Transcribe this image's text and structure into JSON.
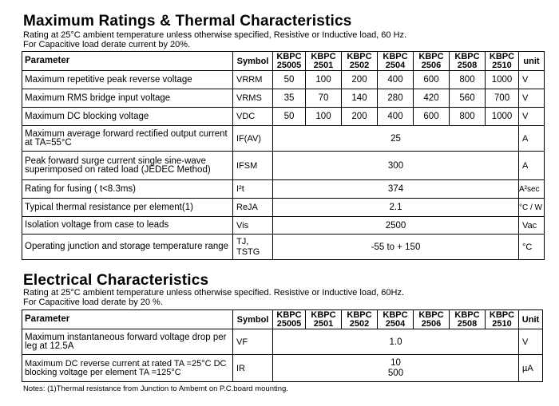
{
  "max_ratings": {
    "title": "Maximum Ratings & Thermal Characteristics",
    "sub1": "Rating at 25°C ambient temperature unless otherwise specified, Resistive or Inductive load, 60 Hz.",
    "sub2": "For Capacitive load derate current by 20%.",
    "header": {
      "parameter": "Parameter",
      "symbol": "Symbol",
      "models": [
        {
          "a": "KBPC",
          "b": "25005"
        },
        {
          "a": "KBPC",
          "b": "2501"
        },
        {
          "a": "KBPC",
          "b": "2502"
        },
        {
          "a": "KBPC",
          "b": "2504"
        },
        {
          "a": "KBPC",
          "b": "2506"
        },
        {
          "a": "KBPC",
          "b": "2508"
        },
        {
          "a": "KBPC",
          "b": "2510"
        }
      ],
      "unit": "unit"
    },
    "rows": [
      {
        "param": "Maximum repetitive peak reverse voltage",
        "symbol": "VRRM",
        "values": [
          "50",
          "100",
          "200",
          "400",
          "600",
          "800",
          "1000"
        ],
        "unit": "V"
      },
      {
        "param": "Maximum RMS bridge input voltage",
        "symbol": "VRMS",
        "values": [
          "35",
          "70",
          "140",
          "280",
          "420",
          "560",
          "700"
        ],
        "unit": "V"
      },
      {
        "param": "Maximum DC blocking voltage",
        "symbol": "VDC",
        "values": [
          "50",
          "100",
          "200",
          "400",
          "600",
          "800",
          "1000"
        ],
        "unit": "V"
      },
      {
        "param": "Maximum average forward rectified output current at TA=55°C",
        "symbol": "IF(AV)",
        "span": "25",
        "unit": "A"
      },
      {
        "param": "Peak forward surge current single sine-wave superimposed on rated load (JEDEC Method)",
        "symbol": "IFSM",
        "span": "300",
        "unit": "A"
      },
      {
        "param": "Rating for fusing ( t<8.3ms)",
        "symbol": "I²t",
        "span": "374",
        "unit": "A²sec"
      },
      {
        "param": "Typical thermal resistance per element(1)",
        "symbol": "ReJA",
        "span": "2.1",
        "unit": "°C / W"
      },
      {
        "param": "Isolation voltage from case to leads",
        "symbol": "Vis",
        "span": "2500",
        "unit": "Vac"
      },
      {
        "param": "Operating junction and storage temperature range",
        "symbol": "TJ, TSTG",
        "span": "-55 to + 150",
        "unit": "°C"
      }
    ]
  },
  "electrical": {
    "title": "Electrical Characteristics",
    "sub1": "Rating at 25°C ambient temperature unless otherwise specified. Resistive or Inductive load, 60Hz.",
    "sub2": "For Capacitive load derate by 20 %.",
    "header": {
      "parameter": "Parameter",
      "symbol": "Symbol",
      "unit": "Unit"
    },
    "rows": [
      {
        "param": "Maximum instantaneous forward voltage drop per leg at 12.5A",
        "symbol": "VF",
        "span": "1.0",
        "unit": "V"
      },
      {
        "param": "Maximum DC reverse current at rated  TA =25°C DC blocking voltage per element     TA =125°C",
        "symbol": "IR",
        "span": "10",
        "span2": "500",
        "unit": "µA"
      }
    ]
  },
  "notes": "Notes: (1)Thermal resistance from Junction to Ambemt on P.C.board mounting."
}
